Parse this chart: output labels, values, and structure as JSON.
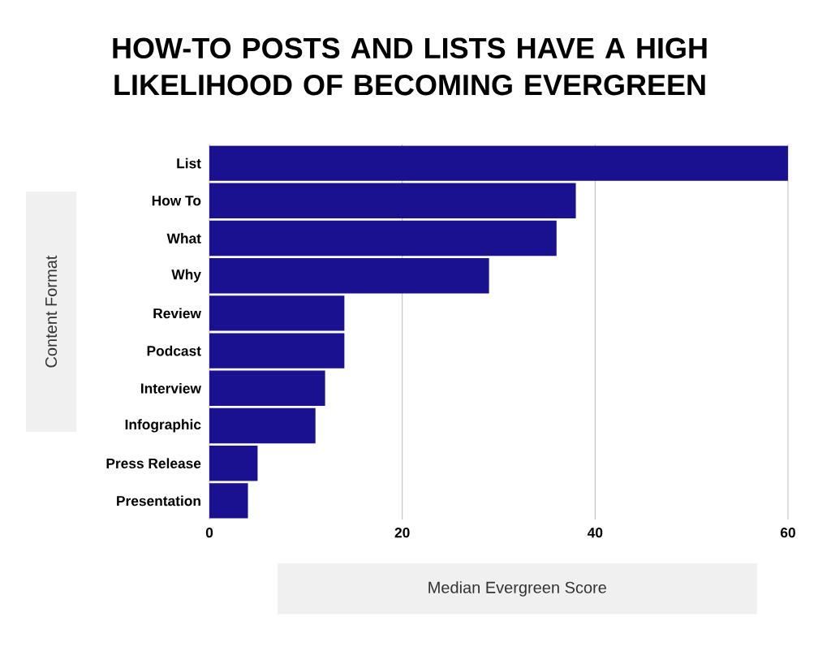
{
  "chart_data": {
    "type": "bar",
    "orientation": "horizontal",
    "title": "HOW-TO POSTS AND LISTS HAVE A HIGH LIKELIHOOD OF BECOMING EVERGREEN",
    "xlabel": "Median Evergreen Score",
    "ylabel": "Content Format",
    "categories": [
      "List",
      "How To",
      "What",
      "Why",
      "Review",
      "Podcast",
      "Interview",
      "Infographic",
      "Press Release",
      "Presentation"
    ],
    "values": [
      60,
      38,
      36,
      29,
      14,
      14,
      12,
      11,
      5,
      4
    ],
    "color": "#1a1190",
    "xlim": [
      0,
      60
    ],
    "xticks": [
      0,
      20,
      40,
      60
    ],
    "grid": "x"
  }
}
